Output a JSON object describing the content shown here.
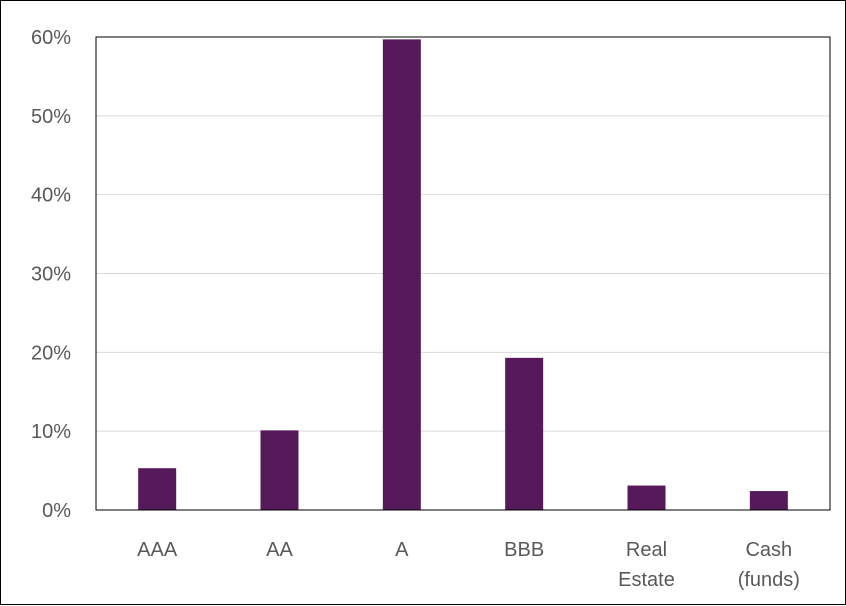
{
  "chart_data": {
    "type": "bar",
    "categories": [
      [
        "AAA"
      ],
      [
        "AA"
      ],
      [
        "A"
      ],
      [
        "BBB"
      ],
      [
        "Real",
        "Estate"
      ],
      [
        "Cash",
        "(funds)"
      ]
    ],
    "values": [
      5.3,
      10.1,
      59.7,
      19.3,
      3.1,
      2.4
    ],
    "ylim": [
      0,
      60
    ],
    "yticks": [
      "0%",
      "10%",
      "20%",
      "30%",
      "40%",
      "50%",
      "60%"
    ],
    "title": "",
    "xlabel": "",
    "ylabel": "",
    "grid": true,
    "legend": "none",
    "colors": {
      "bar": "#561A5B",
      "gridline": "#D9D9D9",
      "label": "#595959",
      "frame": "#000000"
    }
  }
}
